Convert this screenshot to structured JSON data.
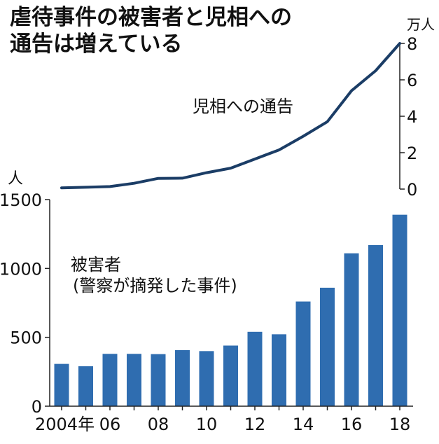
{
  "chart_data": {
    "type": "bar+line",
    "title_lines": [
      "虐待事件の被害者と児相への",
      "通告は増えている"
    ],
    "categories": [
      "2004",
      "2005",
      "2006",
      "2007",
      "2008",
      "2009",
      "2010",
      "2011",
      "2012",
      "2013",
      "2014",
      "2015",
      "2016",
      "2017",
      "2018"
    ],
    "x_tick_labels": [
      {
        "year": "2004",
        "label": "2004年"
      },
      {
        "year": "2006",
        "label": "06"
      },
      {
        "year": "2008",
        "label": "08"
      },
      {
        "year": "2010",
        "label": "10"
      },
      {
        "year": "2012",
        "label": "12"
      },
      {
        "year": "2014",
        "label": "14"
      },
      {
        "year": "2016",
        "label": "16"
      },
      {
        "year": "2018",
        "label": "18"
      }
    ],
    "bar_series": {
      "label_lines": [
        "被害者",
        "(警察が摘発した事件)"
      ],
      "unit": "人",
      "values": [
        307,
        290,
        380,
        380,
        378,
        407,
        400,
        440,
        540,
        522,
        760,
        860,
        1110,
        1170,
        1390
      ],
      "ylim": [
        0,
        1500
      ],
      "ticks": [
        0,
        500,
        1000,
        1500
      ],
      "color": "#2f6db0"
    },
    "line_series": {
      "label": "児相への通告",
      "unit": "万人",
      "values": [
        0.07,
        0.1,
        0.14,
        0.32,
        0.59,
        0.6,
        0.9,
        1.15,
        1.65,
        2.15,
        2.9,
        3.7,
        5.4,
        6.5,
        8.0
      ],
      "ylim": [
        0,
        8
      ],
      "ticks": [
        0,
        2,
        4,
        6,
        8
      ],
      "color": "#1b3d66"
    }
  }
}
